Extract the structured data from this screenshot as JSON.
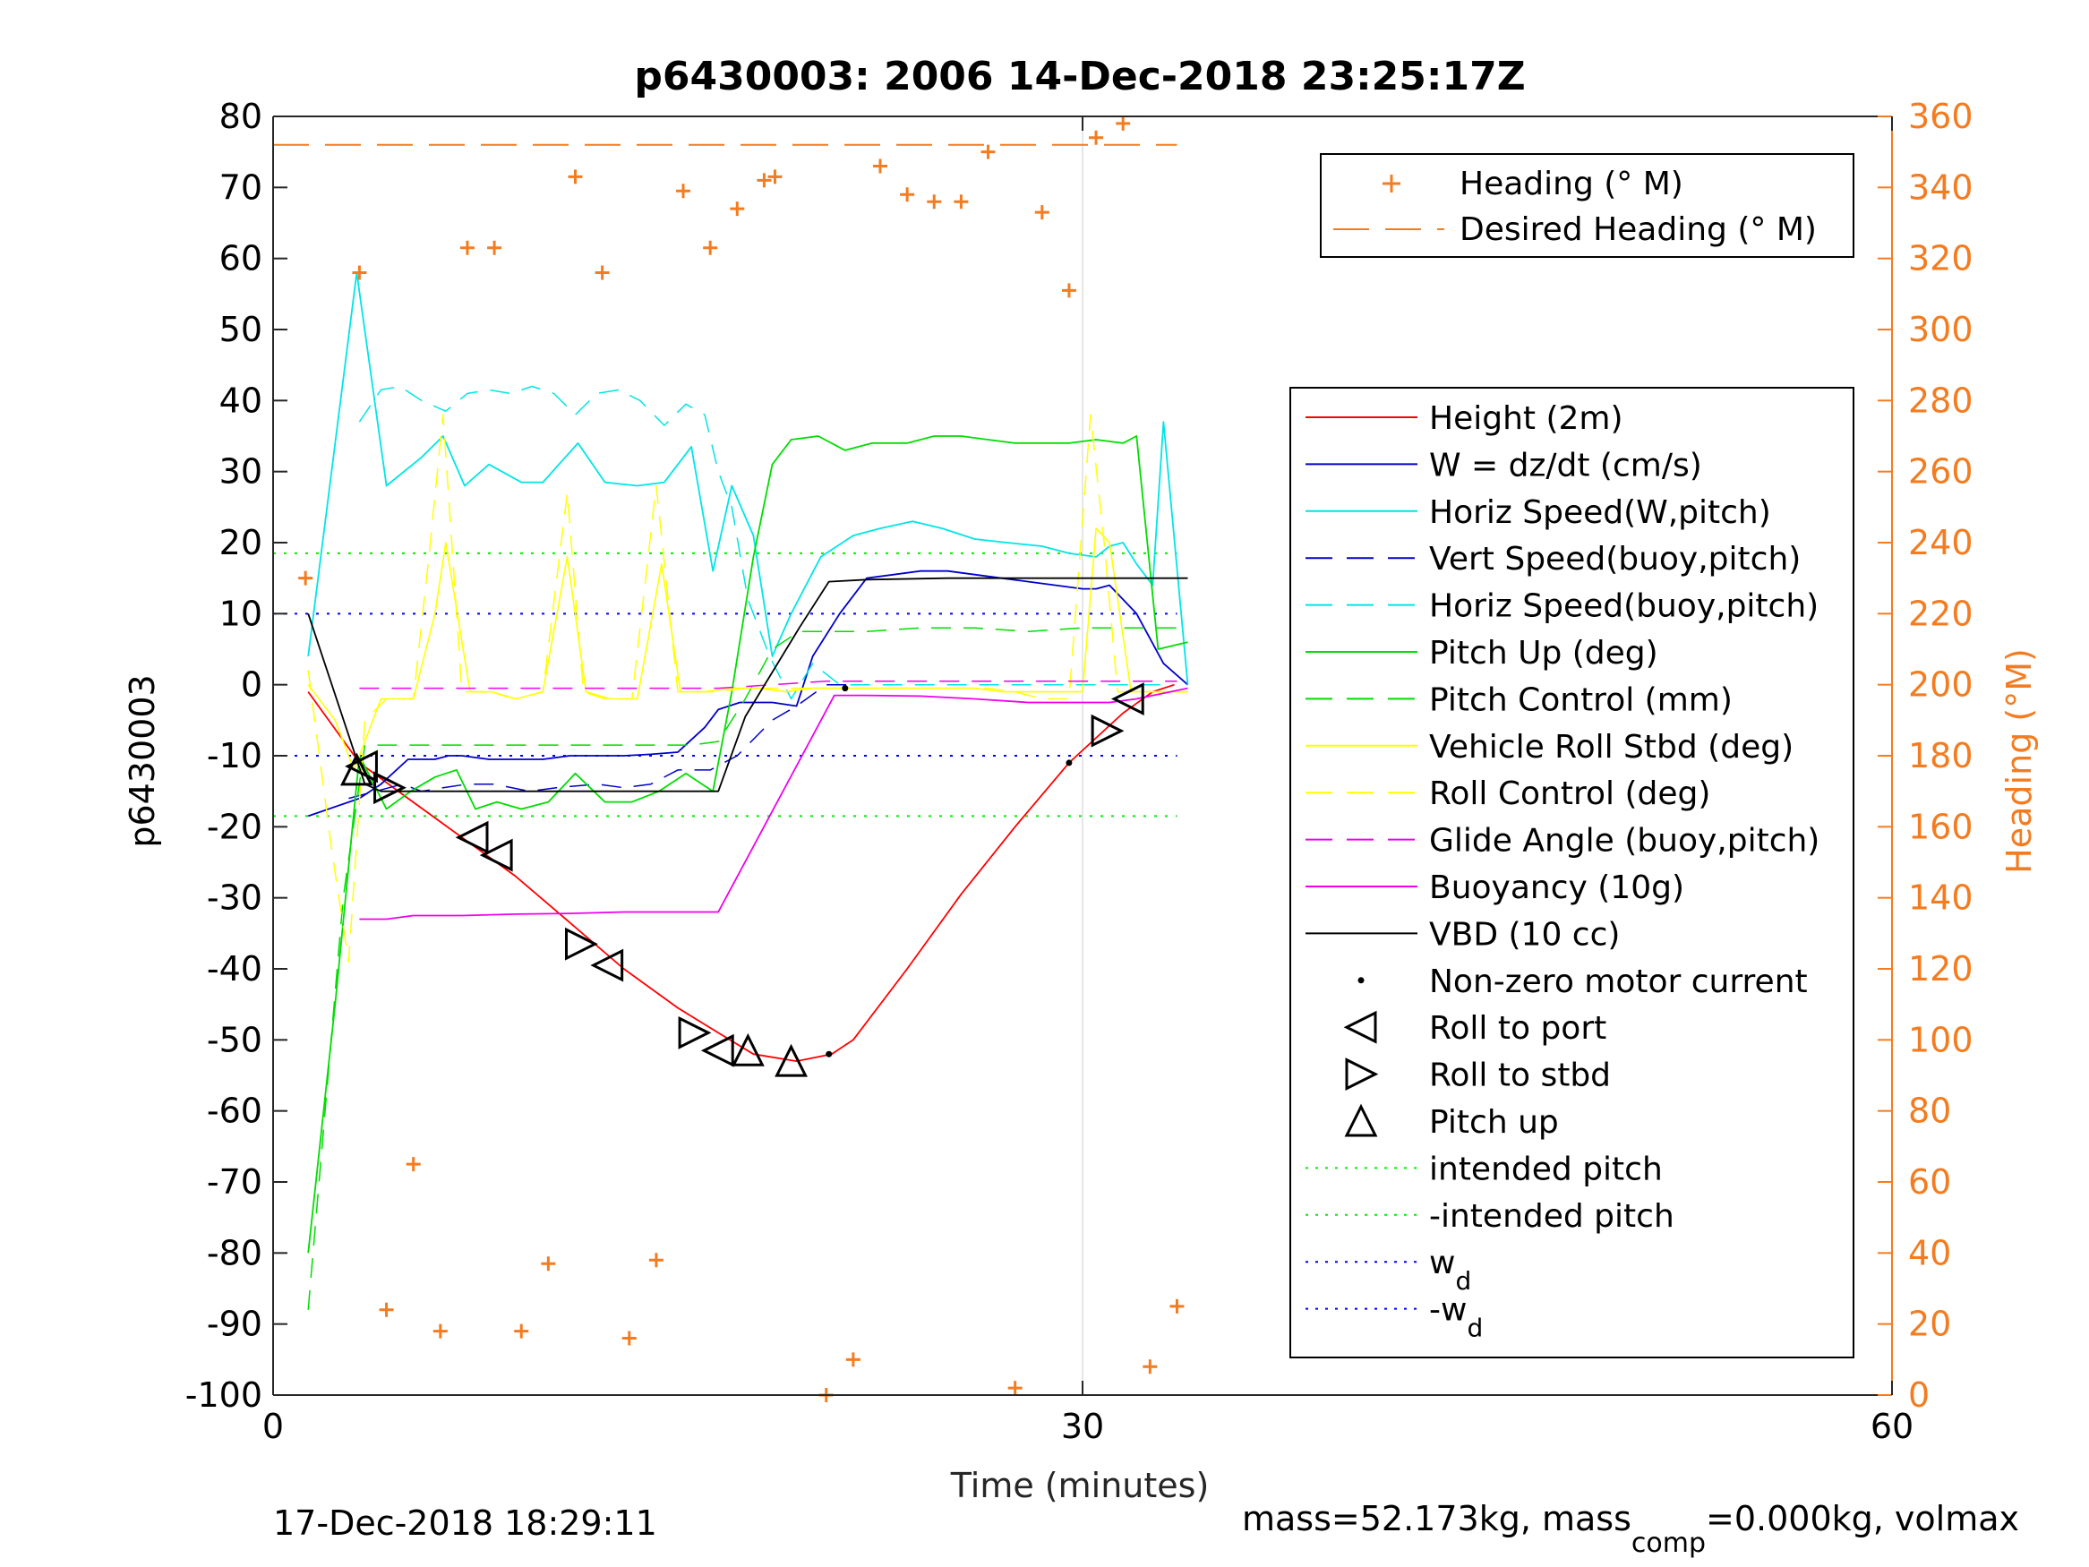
{
  "chart_data": {
    "type": "line",
    "title": "p6430003:  2006 14-Dec-2018 23:25:17Z",
    "xlabel": "Time (minutes)",
    "ylabel": "p6430003",
    "y2label": "Heading (°M)",
    "xlim": [
      0,
      60
    ],
    "ylim": [
      -100,
      80
    ],
    "y2lim": [
      0,
      360
    ],
    "xticks": [
      "0",
      "30",
      "60"
    ],
    "yticks": [
      "80",
      "70",
      "60",
      "50",
      "40",
      "30",
      "20",
      "10",
      "0",
      "-10",
      "-20",
      "-30",
      "-40",
      "-50",
      "-60",
      "-70",
      "-80",
      "-90",
      "-100"
    ],
    "y2ticks": [
      "360",
      "340",
      "320",
      "300",
      "280",
      "260",
      "240",
      "220",
      "200",
      "180",
      "160",
      "140",
      "120",
      "100",
      "80",
      "60",
      "40",
      "20",
      "0"
    ],
    "grid": true,
    "footer_left": "17-Dec-2018 18:29:11",
    "footer_right": {
      "a": "mass=52.173kg, mass",
      "sub": "comp",
      "b": "=0.000kg, volmax"
    },
    "legend_top": {
      "placement": "top-right",
      "entries": [
        "Heading (° M)",
        "Desired Heading (° M)"
      ]
    },
    "legend_main": {
      "placement": "right",
      "entries": [
        {
          "label": "Height (2m)",
          "color": "#ff0000",
          "style": "solid"
        },
        {
          "label": "W = dz/dt (cm/s)",
          "color": "#0000cc",
          "style": "solid"
        },
        {
          "label": "Horiz Speed(W,pitch)",
          "color": "#00e5e5",
          "style": "solid"
        },
        {
          "label": "Vert Speed(buoy,pitch)",
          "color": "#0000cc",
          "style": "dashed"
        },
        {
          "label": "Horiz Speed(buoy,pitch)",
          "color": "#00e5e5",
          "style": "dashed"
        },
        {
          "label": "Pitch Up (deg)",
          "color": "#00dd00",
          "style": "solid"
        },
        {
          "label": "Pitch Control (mm)",
          "color": "#00dd00",
          "style": "dashed"
        },
        {
          "label": "Vehicle Roll Stbd (deg)",
          "color": "#ffff00",
          "style": "solid"
        },
        {
          "label": "Roll Control (deg)",
          "color": "#ffff00",
          "style": "dashed"
        },
        {
          "label": "Glide Angle (buoy,pitch)",
          "color": "#ee00ee",
          "style": "dashed"
        },
        {
          "label": "Buoyancy (10g)",
          "color": "#ee00ee",
          "style": "solid"
        },
        {
          "label": "VBD (10 cc)",
          "color": "#000000",
          "style": "solid"
        },
        {
          "label": "Non-zero motor current",
          "color": "#000000",
          "style": "dot"
        },
        {
          "label": "Roll to port",
          "color": "#000000",
          "style": "tri-left"
        },
        {
          "label": "Roll to stbd",
          "color": "#000000",
          "style": "tri-right"
        },
        {
          "label": "Pitch up",
          "color": "#000000",
          "style": "tri-up"
        },
        {
          "label": "intended pitch",
          "color": "#00ee00",
          "style": "dotted"
        },
        {
          "label": "-intended pitch",
          "color": "#00ee00",
          "style": "dotted"
        },
        {
          "label": "w",
          "sub": "d",
          "color": "#0000ff",
          "style": "dotted"
        },
        {
          "label": "-w",
          "sub": "d",
          "color": "#0000ff",
          "style": "dotted"
        }
      ]
    },
    "colors": {
      "heading": "#f47c20",
      "axis": "#262626",
      "grid": "#dedede"
    },
    "series": [
      {
        "name": "Height (2m)",
        "color": "#ff0000",
        "dash": "",
        "width": 1.8,
        "x": [
          1.3,
          3.2,
          5,
          7,
          9,
          11,
          13,
          15,
          16.5,
          17.8,
          19.4,
          20.7,
          21.5,
          23.5,
          25.5,
          27.5,
          29.5,
          31.5,
          32.6,
          33.4
        ],
        "y": [
          -1,
          -11,
          -16,
          -21.5,
          -27,
          -33.5,
          -40,
          -45.5,
          -49,
          -52,
          -53,
          -52,
          -50,
          -40,
          -29.5,
          -20,
          -11,
          -4,
          -1,
          0
        ]
      },
      {
        "name": "W = dz/dt (cm/s)",
        "color": "#0000cc",
        "dash": "",
        "width": 1.8,
        "x": [
          1.3,
          3.2,
          4,
          5,
          6,
          6.5,
          7,
          8,
          9,
          10,
          11,
          12,
          13,
          14,
          15,
          16,
          16.5,
          17.3,
          18.5,
          19.4,
          20,
          21,
          22,
          23,
          24,
          25,
          26,
          27,
          28,
          29,
          30,
          30.5,
          31,
          32,
          33,
          33.9
        ],
        "y": [
          -18.5,
          -16,
          -14,
          -10.5,
          -10.5,
          -10,
          -10,
          -10.5,
          -10.5,
          -10.5,
          -10,
          -10,
          -10,
          -9.8,
          -9.5,
          -6,
          -3.5,
          -2.5,
          -2.5,
          -3,
          4,
          10,
          15,
          15.5,
          16,
          16,
          15.5,
          15,
          14.5,
          14,
          13.5,
          13.5,
          14,
          10,
          3,
          0
        ]
      },
      {
        "name": "Horiz Speed(W,pitch)",
        "color": "#00e5e5",
        "dash": "",
        "width": 1.8,
        "x": [
          1.3,
          3.1,
          4.2,
          5.5,
          6.3,
          7.1,
          8,
          9.2,
          10,
          11.3,
          12.3,
          13.5,
          14.5,
          15.5,
          16.3,
          17,
          17.8,
          18.5,
          19.2,
          20.3,
          21.5,
          22.5,
          23.7,
          24.8,
          26,
          27.2,
          28.5,
          29.5,
          30.5,
          31,
          31.5,
          32,
          32.6,
          33,
          33.9
        ],
        "y": [
          4,
          58,
          28,
          32,
          35,
          28,
          31,
          28.5,
          28.5,
          34,
          28.5,
          28,
          28.5,
          33.5,
          16,
          28,
          21,
          4,
          10,
          18,
          21,
          22,
          23,
          22,
          20.5,
          20,
          19.5,
          18.5,
          18,
          19.5,
          20,
          17,
          14,
          37,
          0
        ]
      },
      {
        "name": "Vert Speed(buoy,pitch)",
        "color": "#0000cc",
        "dash": "22,14",
        "width": 1.5,
        "x": [
          2.8,
          3.8,
          4.8,
          5.5,
          6.3,
          7.2,
          8.2,
          9.5,
          10.5,
          12,
          13,
          14,
          15,
          16.2,
          17.2,
          18.5,
          19.4,
          20.5,
          21.5
        ],
        "y": [
          -16,
          -15,
          -14,
          -15,
          -14.5,
          -14,
          -14,
          -15,
          -14.5,
          -14,
          -14.5,
          -14,
          -12,
          -12,
          -10,
          -5,
          -3,
          0,
          0
        ]
      },
      {
        "name": "Horiz Speed(buoy,pitch)",
        "color": "#00e5e5",
        "dash": "22,14",
        "width": 1.5,
        "x": [
          3.2,
          4,
          4.7,
          5.5,
          6.4,
          7.2,
          8,
          8.8,
          9.6,
          10.4,
          11.2,
          12,
          12.8,
          13.6,
          14.5,
          15.3,
          16,
          16.5,
          17,
          17.6,
          18.4,
          19.2,
          20,
          21,
          22,
          23,
          24,
          25,
          26,
          27,
          28,
          29,
          30,
          31,
          32,
          33
        ],
        "y": [
          37,
          41.5,
          42,
          40,
          38.5,
          41,
          41.5,
          41,
          42,
          41,
          38,
          41,
          41.5,
          40,
          36.5,
          39.5,
          38,
          30,
          25,
          12,
          4,
          -2,
          3,
          0,
          0,
          0,
          0,
          0,
          0,
          0,
          0,
          0,
          0,
          0,
          0,
          0
        ]
      },
      {
        "name": "Pitch Up (deg)",
        "color": "#00dd00",
        "dash": "",
        "width": 1.8,
        "x": [
          1.3,
          2.3,
          3.2,
          4.2,
          5.1,
          6,
          6.8,
          7.5,
          8.3,
          9.2,
          10.2,
          11.2,
          12.3,
          13.3,
          14.3,
          15.3,
          16.3,
          17,
          17.8,
          18.5,
          19.2,
          20.2,
          21.2,
          22.2,
          23.5,
          24.5,
          25.5,
          26.5,
          27.5,
          28.5,
          29.5,
          30.5,
          31.5,
          32,
          32.8,
          33.9
        ],
        "y": [
          -80,
          -45,
          -10,
          -17.5,
          -15,
          -13,
          -12,
          -17.5,
          -16.5,
          -17.5,
          -16.5,
          -12.5,
          -16.5,
          -16.5,
          -15,
          -12.5,
          -15,
          -1,
          18,
          31,
          34.5,
          35,
          33,
          34,
          34,
          35,
          35,
          34.5,
          34,
          34,
          34,
          34.5,
          34,
          35,
          5,
          6
        ]
      },
      {
        "name": "Pitch Control (mm)",
        "color": "#00dd00",
        "dash": "22,14",
        "width": 1.5,
        "x": [
          1.3,
          2.6,
          3.4,
          4.5,
          6,
          8,
          10,
          12,
          14,
          15.5,
          16.5,
          17.5,
          18.5,
          19.5,
          20.5,
          22,
          24,
          26,
          28,
          30,
          32,
          33.9
        ],
        "y": [
          -88,
          -30,
          -8.5,
          -8.5,
          -8.5,
          -8.5,
          -8.5,
          -8.5,
          -8.5,
          -8.5,
          -8,
          -2,
          5,
          7.5,
          7.5,
          7.5,
          8,
          8,
          7.5,
          8,
          8,
          8
        ]
      },
      {
        "name": "Vehicle Roll Stbd (deg)",
        "color": "#ffff00",
        "dash": "",
        "width": 1.6,
        "x": [
          1.3,
          2.3,
          3,
          4,
          5.2,
          6,
          6.4,
          7.3,
          8.1,
          9,
          10,
          10.9,
          11.6,
          12.5,
          13.5,
          14.4,
          15.1,
          16,
          17,
          18,
          19,
          20,
          21,
          22,
          23,
          24,
          25,
          26,
          27,
          28,
          29,
          30,
          30.5,
          31,
          31.8,
          32.5,
          33,
          33.9
        ],
        "y": [
          0,
          -5,
          -12,
          -2,
          -2,
          10,
          20,
          -1,
          -1,
          -2,
          -1,
          18,
          -1,
          -2,
          -2,
          17,
          -1,
          -1,
          -0.5,
          -0.5,
          -1,
          -0.5,
          -0.5,
          -0.5,
          -0.5,
          -0.5,
          -0.5,
          -0.5,
          -1,
          -1,
          -1,
          -1,
          22,
          20,
          -1,
          -1,
          -1,
          -1
        ]
      },
      {
        "name": "Roll Control (deg)",
        "color": "#ffff00",
        "dash": "22,14",
        "width": 1.5,
        "x": [
          1.3,
          2.2,
          2.8,
          3.4,
          4.2,
          5.2,
          5.8,
          6.3,
          7,
          8,
          9,
          10,
          10.9,
          11.5,
          12.3,
          13.3,
          14.2,
          15,
          15.8,
          16.5,
          17.5,
          18.5,
          19.5,
          20.5,
          21.5,
          22.5,
          23.5,
          24.5,
          25.5,
          26.5,
          27.5,
          28.5,
          29.5,
          30.3,
          30.8,
          31.3,
          31.9,
          32.5,
          33.9
        ],
        "y": [
          2,
          -24,
          -39,
          -5,
          -2,
          -2,
          19,
          38,
          -1,
          -1,
          -2,
          -1,
          27,
          -1,
          -2,
          -2,
          28,
          -1,
          -1,
          -1,
          -0.5,
          -0.5,
          -0.5,
          -0.5,
          -0.5,
          -0.5,
          -0.5,
          -0.5,
          -0.5,
          -0.5,
          -1,
          -2,
          -2,
          38,
          20,
          -1,
          -1,
          -1,
          -1
        ]
      },
      {
        "name": "Glide Angle (buoy,pitch)",
        "color": "#ee00ee",
        "dash": "22,14",
        "width": 1.5,
        "x": [
          3.2,
          6,
          9,
          12,
          15,
          16.5,
          18.5,
          20.5,
          22.5,
          25,
          28,
          30,
          32,
          33.5
        ],
        "y": [
          -0.5,
          -0.5,
          -0.5,
          -0.5,
          -0.5,
          -0.5,
          0,
          0.5,
          0.5,
          0.5,
          0.5,
          0.5,
          0.5,
          0.5
        ]
      },
      {
        "name": "Buoyancy (10g)",
        "color": "#ee00ee",
        "dash": "",
        "width": 1.8,
        "x": [
          3.2,
          4.2,
          5.2,
          7,
          9,
          11,
          13,
          15,
          16.5,
          20.8,
          22,
          24,
          26,
          28,
          30,
          31,
          32,
          33.9
        ],
        "y": [
          -33,
          -33,
          -32.5,
          -32.5,
          -32.3,
          -32.2,
          -32,
          -32,
          -32,
          -1.5,
          -1.5,
          -1.6,
          -2,
          -2.5,
          -2.5,
          -2.5,
          -2,
          -0.5
        ]
      },
      {
        "name": "VBD (10 cc)",
        "color": "#000000",
        "dash": "",
        "width": 1.8,
        "x": [
          1.3,
          3.4,
          4,
          16.5,
          17.5,
          19.5,
          20.6,
          22,
          25,
          28,
          30,
          33.9
        ],
        "y": [
          10,
          -14,
          -15,
          -15,
          -4.5,
          8,
          14.5,
          14.8,
          15,
          15,
          15,
          15
        ]
      }
    ],
    "hlines": [
      {
        "name": "intended pitch",
        "y": 18.5,
        "color": "#00ee00",
        "x0": 0,
        "x1": 33.5
      },
      {
        "name": "-intended pitch",
        "y": -18.5,
        "color": "#00ee00",
        "x0": 0,
        "x1": 33.5
      },
      {
        "name": "w_d",
        "y": 10,
        "color": "#0000ff",
        "x0": 0,
        "x1": 33.5
      },
      {
        "name": "-w_d",
        "y": -10,
        "color": "#0000ff",
        "x0": 0,
        "x1": 33.5
      }
    ],
    "desired_heading": {
      "value": 352,
      "x0": 0,
      "x1": 33.5
    },
    "heading_points": [
      [
        1.2,
        230
      ],
      [
        3.2,
        316
      ],
      [
        4.2,
        24
      ],
      [
        5.2,
        65
      ],
      [
        6.2,
        18
      ],
      [
        7.2,
        323
      ],
      [
        8.2,
        323
      ],
      [
        9.2,
        18
      ],
      [
        10.2,
        37
      ],
      [
        11.2,
        343
      ],
      [
        12.2,
        316
      ],
      [
        13.2,
        16
      ],
      [
        14.2,
        38
      ],
      [
        15.2,
        339
      ],
      [
        16.2,
        323
      ],
      [
        17.2,
        334
      ],
      [
        18.2,
        342
      ],
      [
        18.6,
        343
      ],
      [
        20.5,
        0
      ],
      [
        21.5,
        10
      ],
      [
        22.5,
        346
      ],
      [
        23.5,
        338
      ],
      [
        24.5,
        336
      ],
      [
        25.5,
        336
      ],
      [
        26.5,
        350
      ],
      [
        27.5,
        2
      ],
      [
        28.5,
        333
      ],
      [
        29.5,
        311
      ],
      [
        30.5,
        354
      ],
      [
        31.5,
        358
      ],
      [
        32.5,
        8
      ],
      [
        33.5,
        25
      ]
    ],
    "markers": {
      "roll_port": [
        [
          3.3,
          -11.5
        ],
        [
          7.4,
          -21.5
        ],
        [
          8.3,
          -24
        ],
        [
          12.4,
          -39.5
        ],
        [
          16.5,
          -51.5
        ],
        [
          31.7,
          -2
        ]
      ],
      "roll_stbd": [
        [
          4.3,
          -14.5
        ],
        [
          11.4,
          -36.5
        ],
        [
          15.6,
          -49
        ],
        [
          30.9,
          -6.5
        ]
      ],
      "pitch_up": [
        [
          3.1,
          -12
        ],
        [
          17.6,
          -51.5
        ],
        [
          19.2,
          -53
        ]
      ],
      "motor_dot": [
        [
          20.6,
          -52
        ],
        [
          21.2,
          -0.5
        ],
        [
          29.5,
          -11
        ]
      ]
    }
  }
}
